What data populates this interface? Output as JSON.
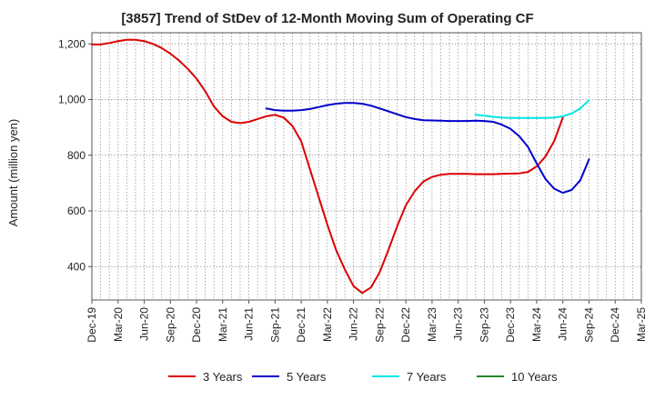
{
  "chart_data": {
    "type": "line",
    "title": "[3857]  Trend of StDev of 12-Month Moving Sum of Operating CF",
    "xlabel": "",
    "ylabel": "Amount (million yen)",
    "ylim": [
      280,
      1240
    ],
    "yticks": [
      400,
      600,
      800,
      1000,
      1200
    ],
    "ytick_labels": [
      "400",
      "600",
      "800",
      "1,000",
      "1,200"
    ],
    "xtick_labels": [
      "Dec-19",
      "Mar-20",
      "Jun-20",
      "Sep-20",
      "Dec-20",
      "Mar-21",
      "Jun-21",
      "Sep-21",
      "Dec-21",
      "Mar-22",
      "Jun-22",
      "Sep-22",
      "Dec-22",
      "Mar-23",
      "Jun-23",
      "Sep-23",
      "Dec-23",
      "Mar-24",
      "Jun-24",
      "Sep-24",
      "Dec-24",
      "Mar-25"
    ],
    "grid": true,
    "legend_position": "bottom",
    "x_start": "2019-12",
    "series": [
      {
        "name": "3 Years",
        "color": "#dd0000",
        "start": "2019-12",
        "values": [
          1198,
          1198,
          1203,
          1210,
          1215,
          1215,
          1210,
          1200,
          1185,
          1165,
          1140,
          1110,
          1075,
          1030,
          975,
          940,
          920,
          915,
          920,
          930,
          940,
          945,
          935,
          905,
          850,
          750,
          650,
          550,
          460,
          390,
          330,
          305,
          325,
          380,
          460,
          545,
          620,
          670,
          705,
          722,
          730,
          733,
          733,
          733,
          732,
          732,
          732,
          733,
          734,
          735,
          740,
          760,
          795,
          850,
          935
        ]
      },
      {
        "name": "5 Years",
        "color": "#0000cc",
        "start": "2021-08",
        "values": [
          968,
          962,
          960,
          960,
          962,
          966,
          973,
          980,
          985,
          988,
          988,
          985,
          978,
          968,
          958,
          947,
          937,
          930,
          926,
          925,
          924,
          923,
          923,
          923,
          924,
          923,
          920,
          910,
          895,
          868,
          830,
          770,
          715,
          680,
          665,
          675,
          710,
          785
        ]
      },
      {
        "name": "7 Years",
        "color": "#00e5e5",
        "start": "2023-08",
        "values": [
          945,
          942,
          938,
          935,
          934,
          934,
          934,
          934,
          934,
          935,
          940,
          950,
          968,
          998
        ]
      },
      {
        "name": "10 Years",
        "color": "#228822",
        "start": "2024-09",
        "values": []
      }
    ]
  }
}
